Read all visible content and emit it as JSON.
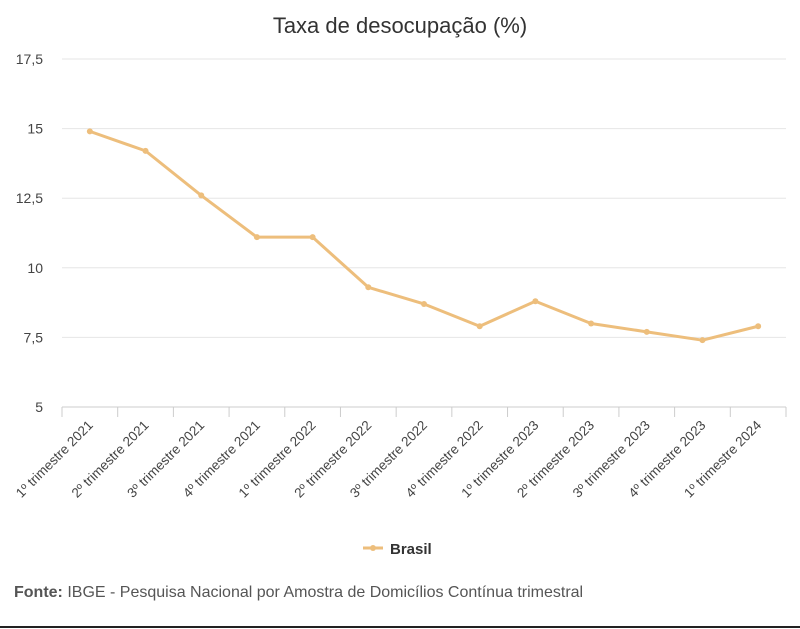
{
  "source": {
    "label": "Fonte:",
    "text": "IBGE - Pesquisa Nacional por Amostra de Domicílios Contínua trimestral"
  },
  "colors": {
    "series": "#EDBE7C",
    "grid": "#E6E6E6",
    "axis": "#CCCCCC"
  },
  "chart_data": {
    "type": "line",
    "title": "Taxa de desocupação (%)",
    "xlabel": "",
    "ylabel": "",
    "ylim": [
      5,
      17.5
    ],
    "yticks": [
      5,
      7.5,
      10,
      12.5,
      15,
      17.5
    ],
    "ytick_labels": [
      "5",
      "7,5",
      "10",
      "12,5",
      "15",
      "17,5"
    ],
    "grid": true,
    "legend": "bottom-center",
    "categories": [
      "1º trimestre 2021",
      "2º trimestre 2021",
      "3º trimestre 2021",
      "4º trimestre 2021",
      "1º trimestre 2022",
      "2º trimestre 2022",
      "3º trimestre 2022",
      "4º trimestre 2022",
      "1º trimestre 2023",
      "2º trimestre 2023",
      "3º trimestre 2023",
      "4º trimestre 2023",
      "1º trimestre 2024"
    ],
    "series": [
      {
        "name": "Brasil",
        "values": [
          14.9,
          14.2,
          12.6,
          11.1,
          11.1,
          9.3,
          8.7,
          7.9,
          8.8,
          8.0,
          7.7,
          7.4,
          7.9
        ]
      }
    ]
  }
}
